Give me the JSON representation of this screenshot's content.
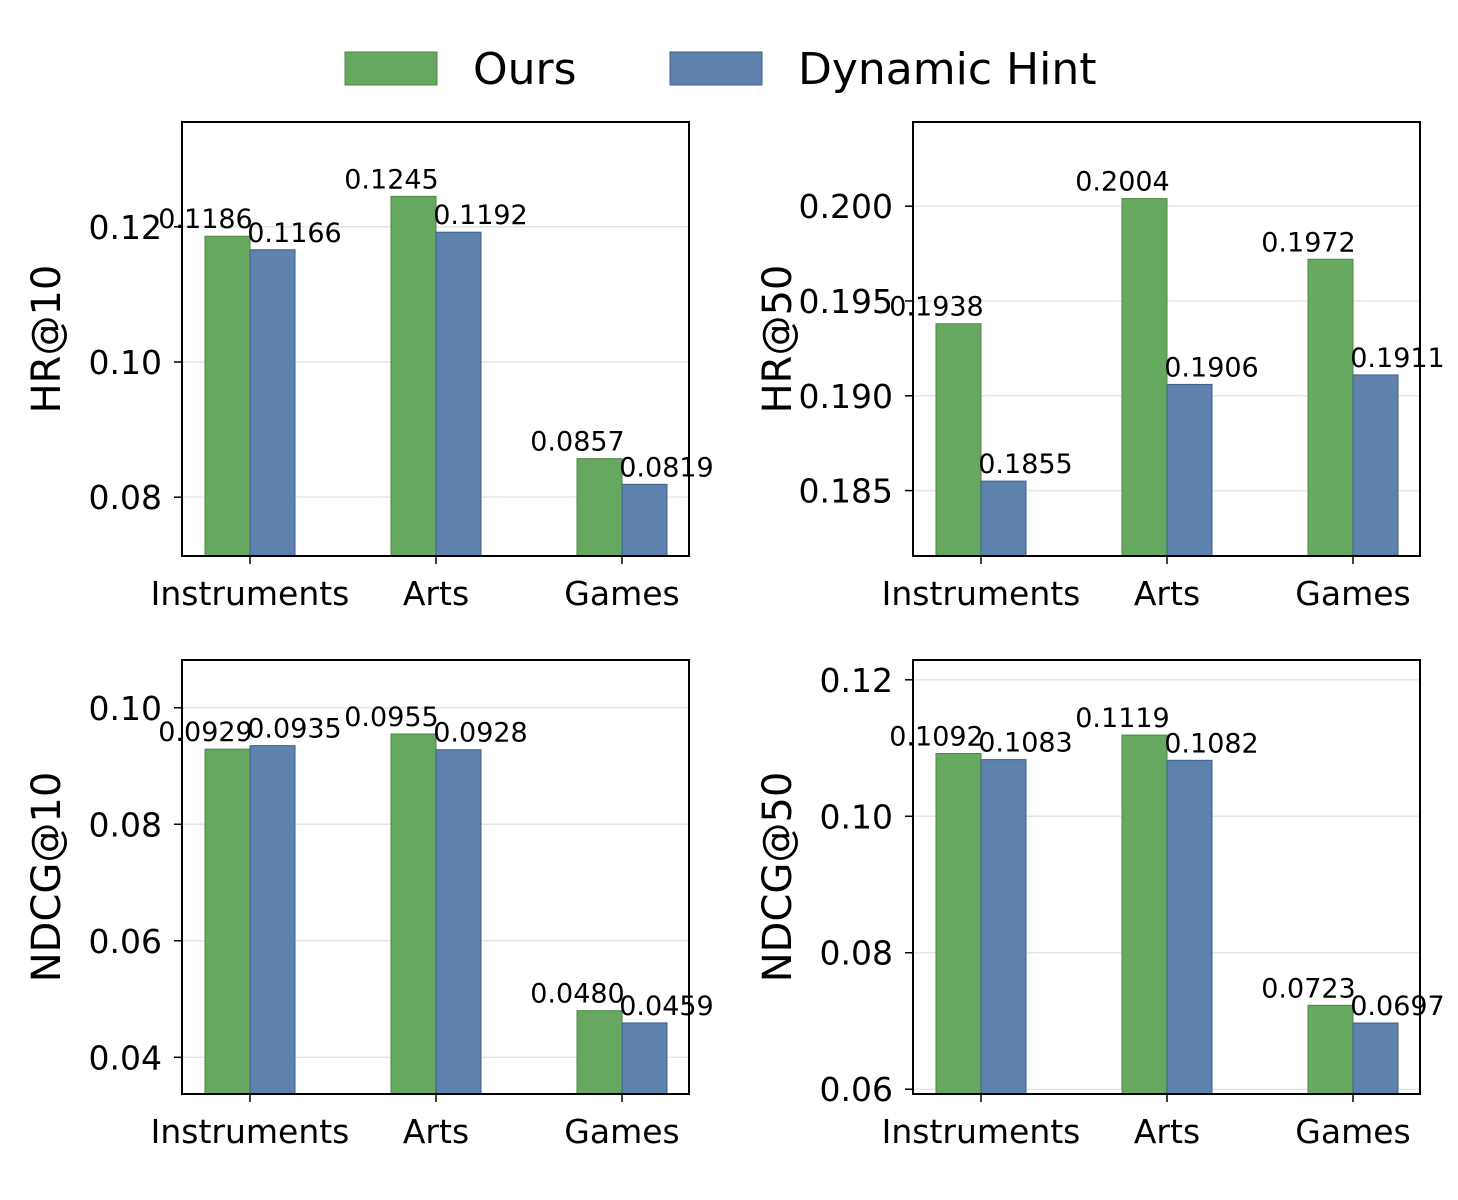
{
  "legend": {
    "items": [
      {
        "label": "Ours",
        "color": "#66a85f"
      },
      {
        "label": "Dynamic Hint",
        "color": "#5e81ad"
      }
    ]
  },
  "colors": {
    "ours": "#66a85f",
    "ours_edge": "#4d8646",
    "hint": "#5e81ad",
    "hint_edge": "#3f5f87",
    "grid": "#e6e6e6"
  },
  "chart_data": [
    {
      "type": "bar",
      "categories": [
        "Instruments",
        "Arts",
        "Games"
      ],
      "series": [
        {
          "name": "Ours",
          "values": [
            0.1186,
            0.1245,
            0.0857
          ],
          "labels": [
            "0.1186",
            "0.1245",
            "0.0857"
          ]
        },
        {
          "name": "Dynamic Hint",
          "values": [
            0.1166,
            0.1192,
            0.0819
          ],
          "labels": [
            "0.1166",
            "0.1192",
            "0.0819"
          ]
        }
      ],
      "ylabel": "HR@10",
      "ylim": [
        0.0713,
        0.1355
      ],
      "yticks": [
        0.08,
        0.1,
        0.12
      ],
      "ytick_labels": [
        "0.08",
        "0.10",
        "0.12"
      ],
      "grid": "y"
    },
    {
      "type": "bar",
      "categories": [
        "Instruments",
        "Arts",
        "Games"
      ],
      "series": [
        {
          "name": "Ours",
          "values": [
            0.1938,
            0.2004,
            0.1972
          ],
          "labels": [
            "0.1938",
            "0.2004",
            "0.1972"
          ]
        },
        {
          "name": "Dynamic Hint",
          "values": [
            0.1855,
            0.1906,
            0.1911
          ],
          "labels": [
            "0.1855",
            "0.1906",
            "0.1911"
          ]
        }
      ],
      "ylabel": "HR@50",
      "ylim": [
        0.18155,
        0.20444
      ],
      "yticks": [
        0.185,
        0.19,
        0.195,
        0.2
      ],
      "ytick_labels": [
        "0.185",
        "0.190",
        "0.195",
        "0.200"
      ],
      "grid": "y"
    },
    {
      "type": "bar",
      "categories": [
        "Instruments",
        "Arts",
        "Games"
      ],
      "series": [
        {
          "name": "Ours",
          "values": [
            0.0929,
            0.0955,
            0.048
          ],
          "labels": [
            "0.0929",
            "0.0955",
            "0.0480"
          ]
        },
        {
          "name": "Dynamic Hint",
          "values": [
            0.0935,
            0.0928,
            0.0459
          ],
          "labels": [
            "0.0935",
            "0.0928",
            "0.0459"
          ]
        }
      ],
      "ylabel": "NDCG@10",
      "ylim": [
        0.0337,
        0.1082
      ],
      "yticks": [
        0.04,
        0.06,
        0.08,
        0.1
      ],
      "ytick_labels": [
        "0.04",
        "0.06",
        "0.08",
        "0.10"
      ],
      "grid": "y"
    },
    {
      "type": "bar",
      "categories": [
        "Instruments",
        "Arts",
        "Games"
      ],
      "series": [
        {
          "name": "Ours",
          "values": [
            0.1092,
            0.1119,
            0.0723
          ],
          "labels": [
            "0.1092",
            "0.1119",
            "0.0723"
          ]
        },
        {
          "name": "Dynamic Hint",
          "values": [
            0.1083,
            0.1082,
            0.0697
          ],
          "labels": [
            "0.1083",
            "0.1082",
            "0.0697"
          ]
        }
      ],
      "ylabel": "NDCG@50",
      "ylim": [
        0.0593,
        0.1229
      ],
      "yticks": [
        0.06,
        0.08,
        0.1,
        0.12
      ],
      "ytick_labels": [
        "0.06",
        "0.08",
        "0.10",
        "0.12"
      ],
      "grid": "y"
    }
  ]
}
